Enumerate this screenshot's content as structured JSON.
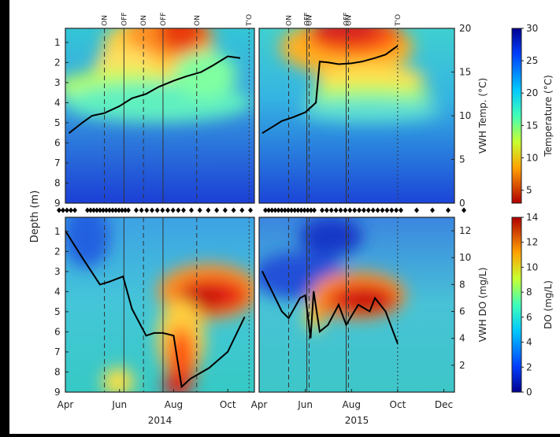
{
  "chart_data": [
    {
      "type": "heatmap",
      "panel": "temperature-2014",
      "xlabel": "2014",
      "ylabel": "Depth (m)",
      "x_ticks": [
        "Apr",
        "Jun",
        "Aug",
        "Oct"
      ],
      "y_ticks": [
        "1",
        "2",
        "3",
        "4",
        "5",
        "6",
        "7",
        "8",
        "9"
      ],
      "y_range": [
        0.3,
        9
      ],
      "event_markers": [
        {
          "label": "ON",
          "date": "2014-05-15",
          "style": "dashed"
        },
        {
          "label": "OFF",
          "date": "2014-06-06",
          "style": "solid"
        },
        {
          "label": "ON",
          "date": "2014-06-28",
          "style": "dashed"
        },
        {
          "label": "OFF",
          "date": "2014-07-20",
          "style": "solid"
        },
        {
          "label": "ON",
          "date": "2014-08-27",
          "style": "dashed"
        },
        {
          "label": "T'O",
          "date": "2014-10-25",
          "style": "dotted"
        }
      ],
      "line_series": {
        "axis": "VWH Temp. (°C)",
        "x": [
          "2014-04-05",
          "2014-04-20",
          "2014-05-01",
          "2014-05-15",
          "2014-06-01",
          "2014-06-15",
          "2014-07-01",
          "2014-07-15",
          "2014-08-01",
          "2014-08-15",
          "2014-09-01",
          "2014-09-15",
          "2014-10-01",
          "2014-10-15"
        ],
        "y": [
          8.0,
          9.2,
          10.0,
          10.3,
          11.1,
          12.0,
          12.5,
          13.3,
          14.0,
          14.5,
          15.0,
          15.8,
          16.8,
          16.6
        ]
      }
    },
    {
      "type": "heatmap",
      "panel": "temperature-2015",
      "xlabel": "2015",
      "x_ticks": [
        "Apr",
        "Jun",
        "Aug",
        "Oct",
        "Dec"
      ],
      "event_markers": [
        {
          "label": "ON",
          "date": "2015-05-10",
          "style": "dashed"
        },
        {
          "label": "OFF",
          "date": "2015-06-03",
          "style": "solid"
        },
        {
          "label": "ON",
          "date": "2015-06-06",
          "style": "dashed"
        },
        {
          "label": "OFF",
          "date": "2015-07-25",
          "style": "solid"
        },
        {
          "label": "ON",
          "date": "2015-07-28",
          "style": "dashed"
        },
        {
          "label": "T'O",
          "date": "2015-10-01",
          "style": "dotted"
        }
      ],
      "right_axis": {
        "label": "VWH Temp. (°C)",
        "ticks": [
          "0",
          "5",
          "10",
          "15",
          "20"
        ],
        "range": [
          0,
          20
        ]
      },
      "line_series": {
        "axis": "VWH Temp. (°C)",
        "x": [
          "2015-04-05",
          "2015-04-20",
          "2015-05-01",
          "2015-05-15",
          "2015-06-01",
          "2015-06-15",
          "2015-06-20",
          "2015-07-01",
          "2015-07-15",
          "2015-08-01",
          "2015-08-15",
          "2015-09-01",
          "2015-09-15",
          "2015-10-01"
        ],
        "y": [
          8.0,
          8.8,
          9.4,
          9.8,
          10.4,
          11.5,
          16.2,
          16.1,
          15.9,
          16.0,
          16.2,
          16.6,
          17.0,
          18.0
        ]
      }
    },
    {
      "type": "heatmap",
      "panel": "do-2014",
      "xlabel": "2014",
      "ylabel": "Depth (m)",
      "x_ticks": [
        "Apr",
        "Jun",
        "Aug",
        "Oct"
      ],
      "y_ticks": [
        "1",
        "2",
        "3",
        "4",
        "5",
        "6",
        "7",
        "8",
        "9"
      ],
      "line_series": {
        "axis": "VWH DO (mg/L)",
        "x": [
          "2014-04-01",
          "2014-04-20",
          "2014-05-10",
          "2014-05-20",
          "2014-06-05",
          "2014-06-15",
          "2014-07-01",
          "2014-07-10",
          "2014-07-20",
          "2014-08-01",
          "2014-08-10",
          "2014-08-20",
          "2014-09-10",
          "2014-10-01",
          "2014-10-20"
        ],
        "y": [
          12.0,
          10.0,
          8.0,
          8.2,
          8.6,
          6.2,
          4.2,
          4.4,
          4.4,
          4.2,
          0.4,
          1.0,
          1.8,
          3.0,
          5.6
        ]
      }
    },
    {
      "type": "heatmap",
      "panel": "do-2015",
      "xlabel": "2015",
      "x_ticks": [
        "Apr",
        "Jun",
        "Aug",
        "Oct",
        "Dec"
      ],
      "right_axis": {
        "label": "VWH DO (mg/L)",
        "ticks": [
          "2",
          "4",
          "6",
          "8",
          "10",
          "12"
        ],
        "range": [
          0,
          13
        ]
      },
      "line_series": {
        "axis": "VWH DO (mg/L)",
        "x": [
          "2015-04-05",
          "2015-05-01",
          "2015-05-10",
          "2015-05-25",
          "2015-06-01",
          "2015-06-08",
          "2015-06-12",
          "2015-06-20",
          "2015-07-01",
          "2015-07-15",
          "2015-07-25",
          "2015-08-10",
          "2015-08-25",
          "2015-09-01",
          "2015-09-15",
          "2015-10-01"
        ],
        "y": [
          9.0,
          6.0,
          5.5,
          7.0,
          7.2,
          4.0,
          7.5,
          4.5,
          5.0,
          6.5,
          5.0,
          6.5,
          6.0,
          7.0,
          6.0,
          3.6
        ]
      }
    }
  ],
  "colorbars": [
    {
      "label": "Temperature (°C)",
      "ticks": [
        "5",
        "10",
        "15",
        "20",
        "25",
        "30"
      ],
      "range": [
        3,
        30
      ],
      "colormap": "jet"
    },
    {
      "label": "DO (mg/L)",
      "ticks": [
        "0",
        "2",
        "4",
        "6",
        "8",
        "10",
        "12",
        "14"
      ],
      "range": [
        0,
        14
      ],
      "colormap": "jet-reversed"
    }
  ],
  "marker_strip": {
    "description": "sampling dates",
    "marker": "diamond"
  },
  "colors": {
    "line": "#000000",
    "high": "#d4141b",
    "mid": "#32c8d0",
    "low": "#1b3fd6"
  }
}
